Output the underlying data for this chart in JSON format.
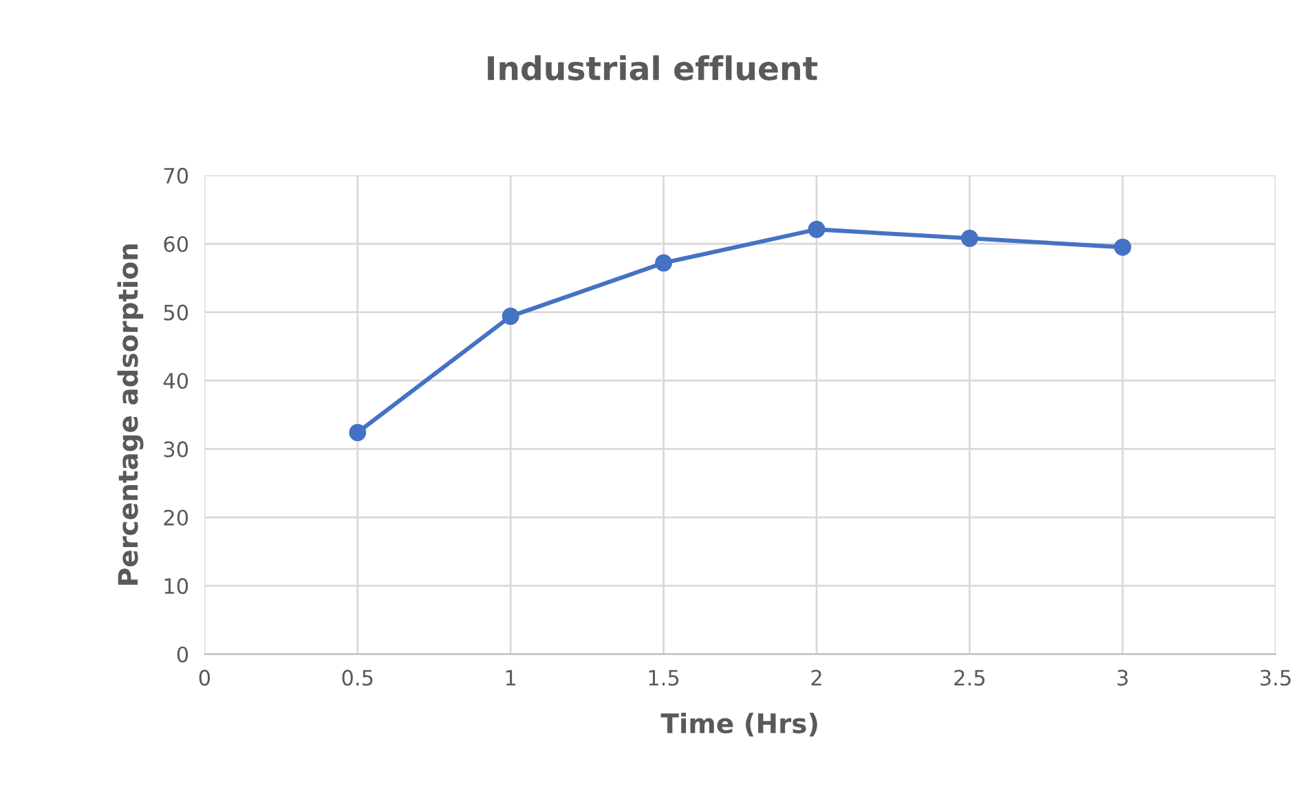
{
  "chart_data": {
    "type": "line",
    "title": "Industrial effluent",
    "xlabel": "Time (Hrs)",
    "ylabel": "Percentage adsorption",
    "x": [
      0.5,
      1,
      1.5,
      2,
      2.5,
      3
    ],
    "series": [
      {
        "color": "#4472c4",
        "values": [
          32.4,
          49.4,
          57.2,
          62.1,
          60.8,
          59.5
        ]
      }
    ],
    "xlim": [
      0,
      3.5
    ],
    "xticks": [
      0,
      0.5,
      1,
      1.5,
      2,
      2.5,
      3,
      3.5
    ],
    "ylim": [
      0,
      70
    ],
    "yticks": [
      0,
      10,
      20,
      30,
      40,
      50,
      60,
      70
    ],
    "grid": true,
    "marker": "circle",
    "line_style": "solid",
    "legend": false
  }
}
